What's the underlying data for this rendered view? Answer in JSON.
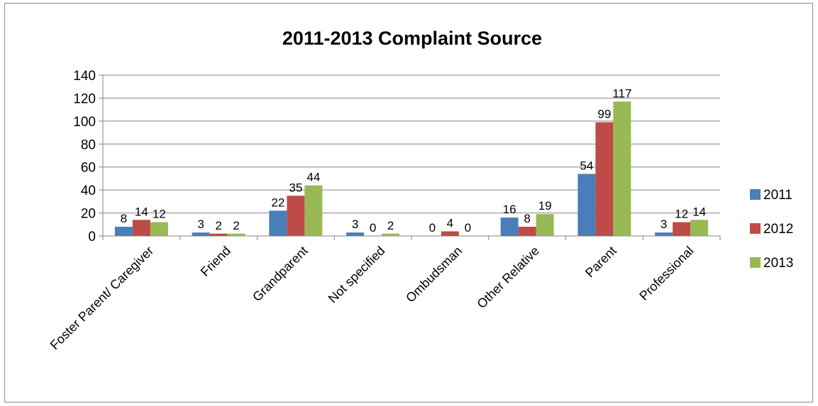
{
  "chart_data": {
    "type": "bar",
    "title": "2011-2013 Complaint Source",
    "xlabel": "",
    "ylabel": "",
    "ylim": [
      0,
      140
    ],
    "yticks": [
      0,
      20,
      40,
      60,
      80,
      100,
      120,
      140
    ],
    "grid": true,
    "legend": "right",
    "categories": [
      "Foster Parent/ Caregiver",
      "Friend",
      "Grandparent",
      "Not specified",
      "Ombudsman",
      "Other Relative",
      "Parent",
      "Professional"
    ],
    "series": [
      {
        "name": "2011",
        "color": "#4a7ebb",
        "values": [
          8,
          3,
          22,
          3,
          0,
          16,
          54,
          3
        ]
      },
      {
        "name": "2012",
        "color": "#be4b48",
        "values": [
          14,
          2,
          35,
          0,
          4,
          8,
          99,
          12
        ]
      },
      {
        "name": "2013",
        "color": "#98b954",
        "values": [
          12,
          2,
          44,
          2,
          0,
          19,
          117,
          14
        ]
      }
    ]
  }
}
